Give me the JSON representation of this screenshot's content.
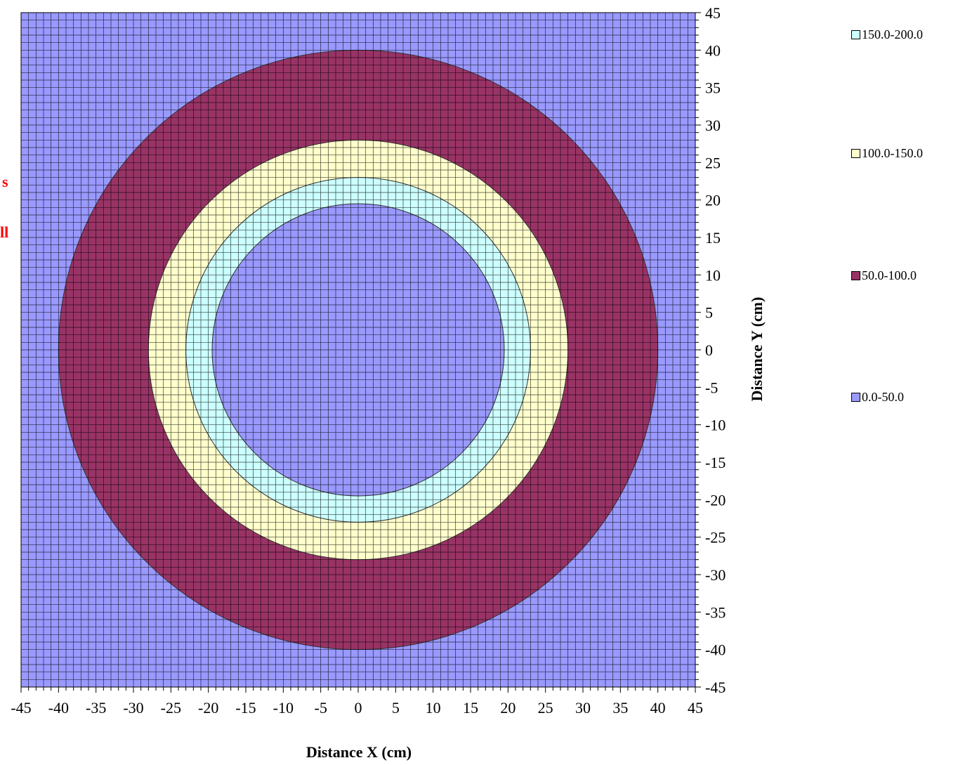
{
  "chart_data": {
    "type": "heatmap",
    "subtype": "contour",
    "xlabel": "Distance X (cm)",
    "ylabel": "Distance Y (cm)",
    "xlim": [
      -45,
      45
    ],
    "ylim": [
      -45,
      45
    ],
    "x_ticks": [
      -45,
      -40,
      -35,
      -30,
      -25,
      -20,
      -15,
      -10,
      -5,
      0,
      5,
      10,
      15,
      20,
      25,
      30,
      35,
      40,
      45
    ],
    "y_ticks": [
      45,
      40,
      35,
      30,
      25,
      20,
      15,
      10,
      5,
      0,
      -5,
      -10,
      -15,
      -20,
      -25,
      -30,
      -35,
      -40,
      -45
    ],
    "grid": true,
    "legend_position": "right",
    "legend": [
      {
        "label": "150.0-200.0",
        "color": "#ccffff"
      },
      {
        "label": "100.0-150.0",
        "color": "#ffffcc"
      },
      {
        "label": "50.0-100.0",
        "color": "#993366"
      },
      {
        "label": "0.0-50.0",
        "color": "#9999ff"
      }
    ],
    "bands": [
      {
        "range": "0.0-50.0",
        "outer_radius_cm": null,
        "color": "#9999ff"
      },
      {
        "range": "50.0-100.0",
        "outer_radius_cm": 40,
        "color": "#993366"
      },
      {
        "range": "100.0-150.0",
        "outer_radius_cm": 28,
        "color": "#ffffcc"
      },
      {
        "range": "150.0-200.0",
        "outer_radius_cm": 23,
        "color": "#ccffff"
      },
      {
        "range": "0.0-50.0",
        "outer_radius_cm": 19.5,
        "color": "#9999ff"
      }
    ]
  },
  "clipped_text": [
    "s",
    "ll"
  ]
}
